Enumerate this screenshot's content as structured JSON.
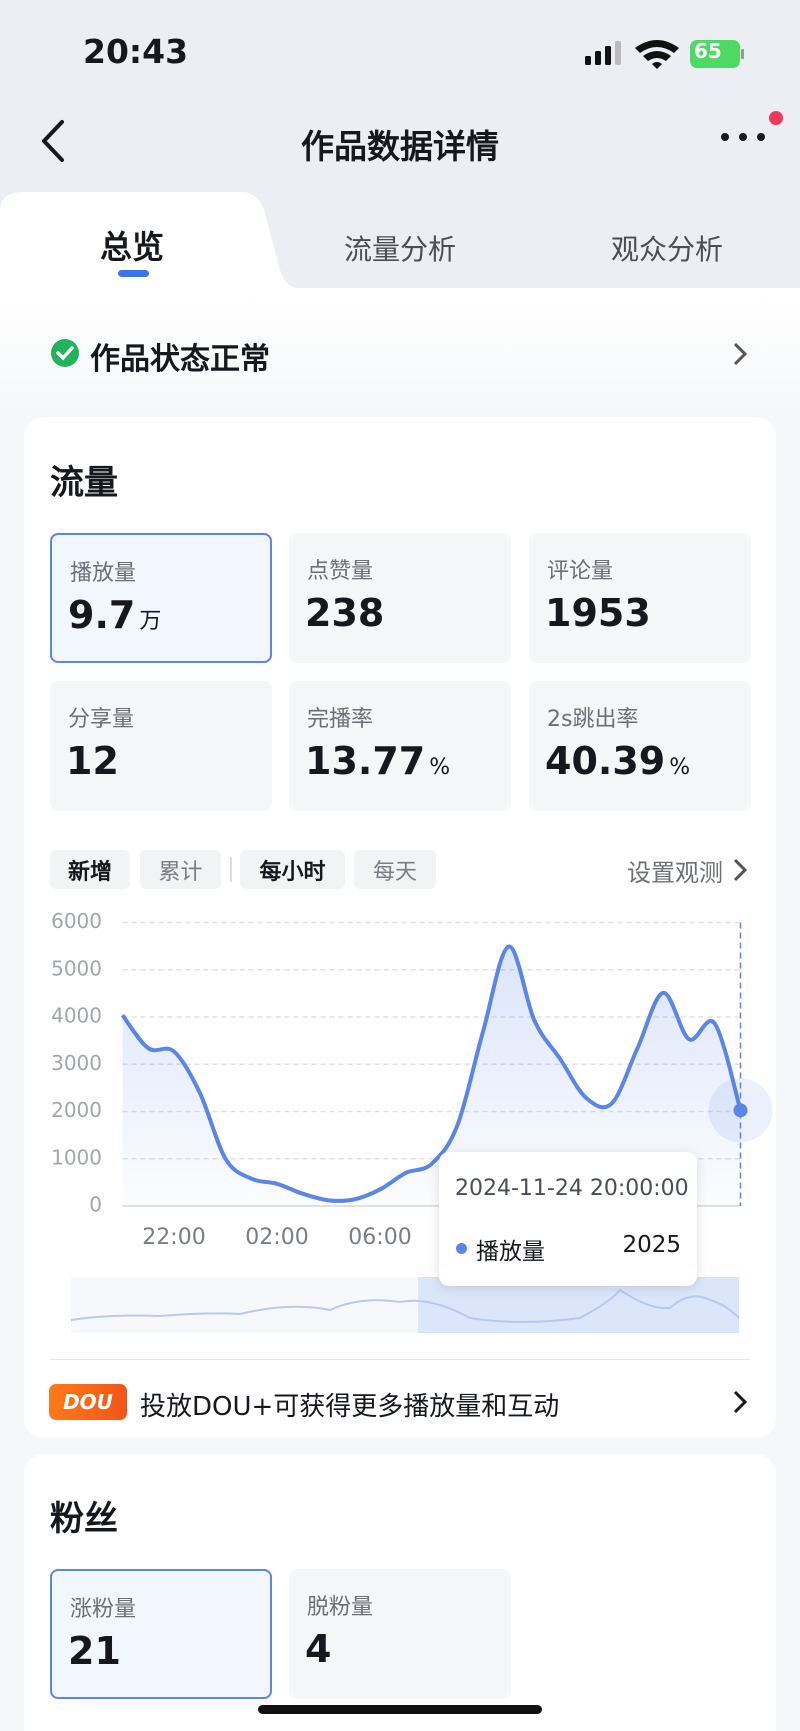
{
  "status_bar": {
    "time": "20:43",
    "battery": "65"
  },
  "header": {
    "title": "作品数据详情"
  },
  "tabs": [
    "总览",
    "流量分析",
    "观众分析"
  ],
  "status": {
    "text": "作品状态正常"
  },
  "traffic": {
    "title": "流量",
    "metrics": [
      {
        "label": "播放量",
        "value": "9.7",
        "unit": "万"
      },
      {
        "label": "点赞量",
        "value": "238"
      },
      {
        "label": "评论量",
        "value": "1953"
      },
      {
        "label": "分享量",
        "value": "12"
      },
      {
        "label": "完播率",
        "value": "13.77",
        "unit": "%"
      },
      {
        "label": "2s跳出率",
        "value": "40.39",
        "unit": "%"
      }
    ],
    "filters": [
      "新增",
      "累计",
      "每小时",
      "每天"
    ],
    "settings": "设置观测",
    "chart": {
      "type": "line",
      "categories": [
        null,
        null,
        "22:00",
        null,
        null,
        null,
        "02:00",
        null,
        null,
        null,
        "06:00",
        null,
        null,
        null,
        null,
        null,
        null,
        null,
        null,
        null,
        null,
        null,
        null,
        null,
        null
      ],
      "series": [
        {
          "name": "播放量",
          "color": "#5b85e6",
          "values": [
            4040,
            3340,
            3270,
            2400,
            1000,
            580,
            470,
            260,
            120,
            140,
            350,
            700,
            890,
            1700,
            3690,
            5490,
            3920,
            3110,
            2290,
            2170,
            3340,
            4510,
            3530,
            3860,
            2025
          ]
        }
      ],
      "ylim": [
        0,
        6000
      ],
      "yticks": [
        0,
        1000,
        2000,
        3000,
        4000,
        5000,
        6000
      ],
      "grid": true,
      "tooltip": {
        "date": "2024-11-24 20:00:00"
      }
    },
    "promo": {
      "badge": "DOU",
      "text": "投放DOU+可获得更多播放量和互动"
    }
  },
  "fans": {
    "title": "粉丝",
    "metrics": [
      {
        "label": "涨粉量",
        "value": "21"
      },
      {
        "label": "脱粉量",
        "value": "4"
      }
    ]
  }
}
